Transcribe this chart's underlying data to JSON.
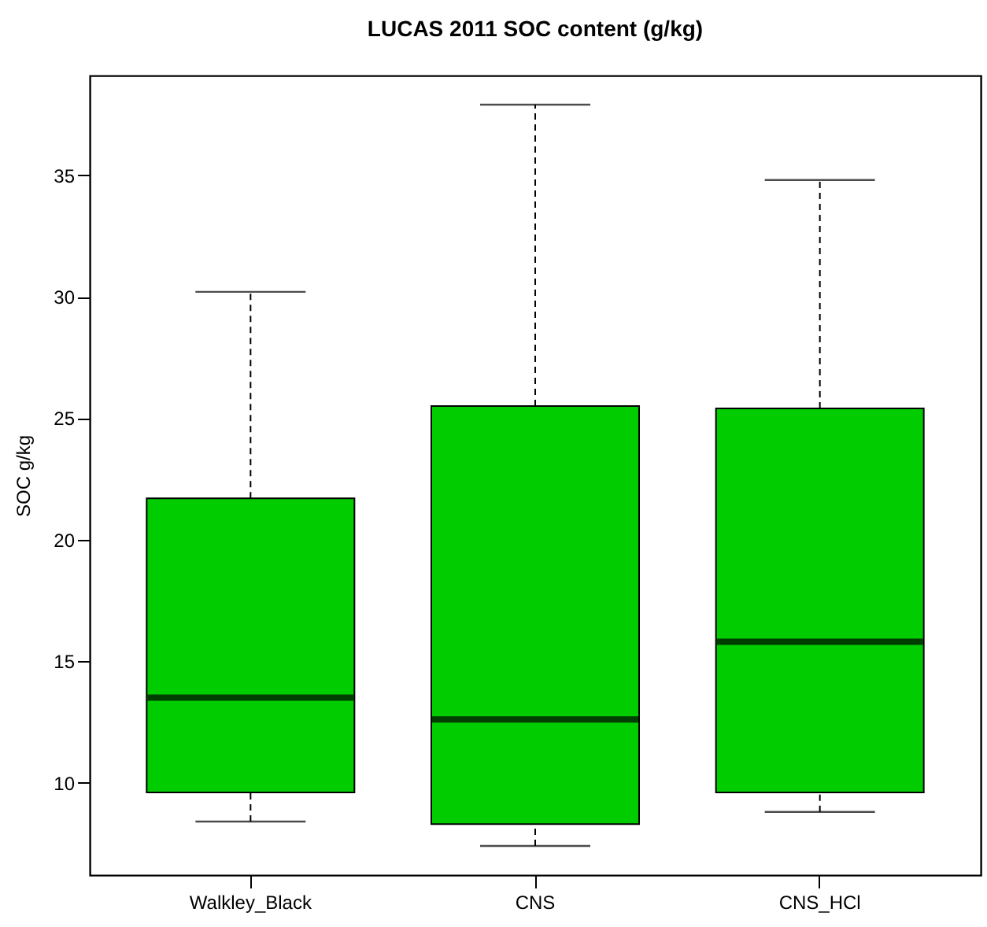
{
  "chart_data": {
    "type": "box",
    "title": "LUCAS 2011 SOC content (g/kg)",
    "ylabel": "SOC g/kg",
    "categories": [
      "Walkley_Black",
      "CNS",
      "CNS_HCl"
    ],
    "boxes": [
      {
        "low": 8.4,
        "q1": 9.6,
        "median": 13.5,
        "q3": 21.7,
        "high": 30.2
      },
      {
        "low": 7.4,
        "q1": 8.3,
        "median": 12.6,
        "q3": 25.5,
        "high": 37.9
      },
      {
        "low": 8.8,
        "q1": 9.6,
        "median": 15.8,
        "q3": 25.4,
        "high": 34.8
      }
    ],
    "color": "#00cc00",
    "ylim": [
      6.2,
      39.1
    ],
    "yticks": [
      10,
      15,
      20,
      25,
      30,
      35
    ]
  }
}
